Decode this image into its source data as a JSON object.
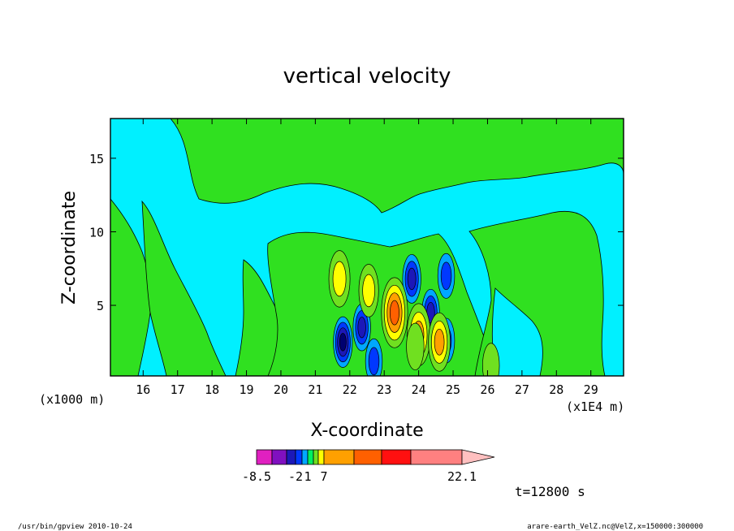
{
  "chart_data": {
    "type": "heatmap",
    "title": "vertical velocity",
    "xlabel": "X-coordinate",
    "ylabel": "Z-coordinate",
    "x_unit_left": "(x1000 m)",
    "x_unit_right": "(x1E4 m)",
    "xlim": [
      15.05,
      29.95
    ],
    "ylim": [
      0.2,
      17.7
    ],
    "x_ticks": [
      "16",
      "17",
      "18",
      "19",
      "20",
      "21",
      "22",
      "23",
      "24",
      "25",
      "26",
      "27",
      "28",
      "29"
    ],
    "y_ticks": [
      "5",
      "10",
      "15"
    ],
    "time_label": "t=12800 s",
    "colorbar": {
      "colors": [
        "#e020c0",
        "#8010c0",
        "#1c18b8",
        "#0038ff",
        "#00a8ff",
        "#00f060",
        "#70e020",
        "#ffff00",
        "#ffa000",
        "#ff6000",
        "#ff1010",
        "#ff8080"
      ],
      "tail_color": "#ffc0c0",
      "labels": [
        "-8.5",
        "-2",
        "1",
        "7",
        "22.1"
      ],
      "label_slots": [
        0,
        3,
        5,
        8,
        12
      ]
    },
    "background_levels": {
      "cyan": "#00f0ff",
      "green": "#30e020"
    },
    "cells": [
      {
        "x": 21.8,
        "z": 2.5,
        "level": -6.0
      },
      {
        "x": 22.35,
        "z": 3.5,
        "level": -4.0
      },
      {
        "x": 22.7,
        "z": 1.2,
        "level": -3.0
      },
      {
        "x": 23.8,
        "z": 6.8,
        "level": -5.0
      },
      {
        "x": 24.35,
        "z": 4.5,
        "level": -4.0
      },
      {
        "x": 24.8,
        "z": 2.6,
        "level": -3.0
      },
      {
        "x": 24.8,
        "z": 7.0,
        "level": -3.0
      },
      {
        "x": 21.7,
        "z": 6.8,
        "level": 9.0
      },
      {
        "x": 22.55,
        "z": 6.0,
        "level": 7.0
      },
      {
        "x": 23.3,
        "z": 4.5,
        "level": 16.0
      },
      {
        "x": 24.0,
        "z": 3.0,
        "level": 12.0
      },
      {
        "x": 24.6,
        "z": 2.5,
        "level": 10.0
      },
      {
        "x": 23.9,
        "z": 2.2,
        "level": 4.0
      },
      {
        "x": 26.1,
        "z": 0.9,
        "level": 3.0
      }
    ]
  },
  "footer": {
    "left": "/usr/bin/gpview   2010-10-24",
    "right": "arare-earth_VelZ.nc@VelZ,x=150000:300000"
  }
}
